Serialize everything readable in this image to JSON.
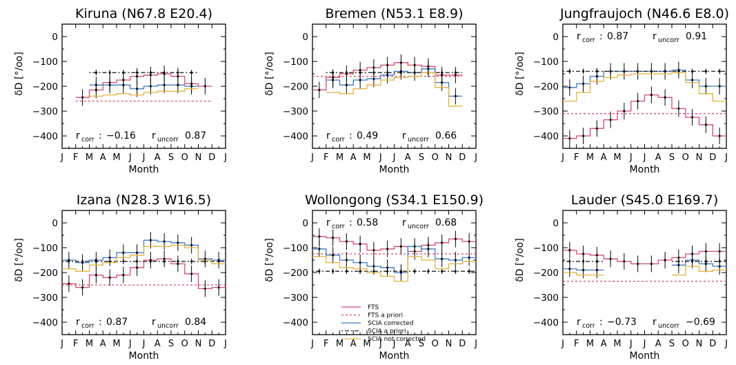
{
  "figure": {
    "month_labels": [
      "J",
      "F",
      "M",
      "A",
      "M",
      "J",
      "J",
      "A",
      "S",
      "O",
      "N",
      "D",
      "J"
    ],
    "series_styles": [
      {
        "key": "fts",
        "color": "#d6486b",
        "dash": ""
      },
      {
        "key": "fts_ap",
        "color": "#d6486b",
        "dash": "3,3"
      },
      {
        "key": "scia",
        "color": "#3a78c2",
        "dash": ""
      },
      {
        "key": "scia_ap",
        "color": "#222222",
        "dash": "2,3,6,3"
      },
      {
        "key": "scia_nc",
        "color": "#e3b13c",
        "dash": ""
      }
    ],
    "legend": [
      {
        "key": "fts",
        "label": "FTS"
      },
      {
        "key": "fts_ap",
        "label": "FTS a priori"
      },
      {
        "key": "scia",
        "label": "SCIA corrected"
      },
      {
        "key": "scia_ap",
        "label": "SCIA a priori"
      },
      {
        "key": "scia_nc",
        "label": "SCIA not corrected"
      }
    ]
  },
  "chart_data": [
    {
      "type": "line",
      "title": "Kiruna (N67.8 E20.4)",
      "xlabel": "Month",
      "ylabel": "δD [°/oo]",
      "xlim": [
        0,
        12
      ],
      "ylim": [
        -450,
        50
      ],
      "yticks": [
        0,
        -100,
        -200,
        -300,
        -400
      ],
      "x": [
        1,
        2,
        3,
        4,
        5,
        6,
        7,
        8,
        9,
        10
      ],
      "corr_text": {
        "rcorr_label": "r",
        "rcorr_sub": "corr",
        "rcorr_colon": ":",
        "rcorr_value": "-0.16",
        "runcorr_label": "r",
        "runcorr_sub": "uncorr",
        "runcorr_value": "0.87"
      },
      "series": [
        {
          "key": "fts",
          "values": [
            -245,
            -215,
            -185,
            -175,
            -160,
            -155,
            -150,
            -160,
            -190,
            -200
          ]
        },
        {
          "key": "fts_ap",
          "values": [
            -260,
            -260,
            -260,
            -260,
            -260,
            -260,
            -260,
            -260,
            -260,
            -260
          ]
        },
        {
          "key": "scia",
          "values": [
            null,
            -195,
            -195,
            -195,
            -210,
            -200,
            -195,
            -195,
            -200,
            null
          ]
        },
        {
          "key": "scia_ap",
          "values": [
            null,
            -145,
            -145,
            -145,
            -145,
            -145,
            -145,
            -145,
            -145,
            null
          ]
        },
        {
          "key": "scia_nc",
          "values": [
            null,
            -240,
            -235,
            -230,
            -235,
            -225,
            -220,
            -220,
            -210,
            null
          ]
        }
      ]
    },
    {
      "type": "line",
      "title": "Bremen (N53.1 E8.9)",
      "xlabel": "Month",
      "ylabel": "δD [°/oo]",
      "xlim": [
        0,
        12
      ],
      "ylim": [
        -450,
        50
      ],
      "yticks": [
        0,
        -100,
        -200,
        -300,
        -400
      ],
      "x": [
        0,
        1,
        2,
        3,
        4,
        5,
        6,
        7,
        8,
        9,
        10,
        11
      ],
      "corr_text": {
        "rcorr_label": "r",
        "rcorr_sub": "corr",
        "rcorr_colon": ":",
        "rcorr_value": "0.49",
        "runcorr_label": "r",
        "runcorr_sub": "uncorr",
        "runcorr_value": "0.66"
      },
      "series": [
        {
          "key": "fts",
          "values": [
            -215,
            -165,
            -150,
            -135,
            -125,
            -115,
            -105,
            -115,
            -120,
            -155,
            -155,
            null
          ]
        },
        {
          "key": "fts_ap",
          "values": [
            -160,
            -160,
            -160,
            -160,
            -160,
            -160,
            -160,
            -160,
            -160,
            -160,
            -160,
            null
          ]
        },
        {
          "key": "scia",
          "values": [
            null,
            -175,
            -195,
            -175,
            -170,
            -155,
            -140,
            -145,
            -130,
            -185,
            -240,
            null
          ]
        },
        {
          "key": "scia_ap",
          "values": [
            null,
            -145,
            -145,
            -145,
            -145,
            -145,
            -145,
            -145,
            -145,
            -145,
            -145,
            null
          ]
        },
        {
          "key": "scia_nc",
          "values": [
            null,
            -225,
            -230,
            -210,
            -195,
            -175,
            -165,
            -160,
            -145,
            -205,
            -280,
            null
          ]
        }
      ]
    },
    {
      "type": "line",
      "title": "Jungfraujoch (N46.6 E8.0)",
      "xlabel": "Month",
      "ylabel": "δD [°/oo]",
      "xlim": [
        0,
        12
      ],
      "ylim": [
        -450,
        50
      ],
      "yticks": [
        0,
        -100,
        -200,
        -300,
        -400
      ],
      "x": [
        0,
        1,
        2,
        3,
        4,
        5,
        6,
        7,
        8,
        9,
        10,
        11
      ],
      "corr_text": {
        "rcorr_label": "r",
        "rcorr_sub": "corr",
        "rcorr_colon": ":",
        "rcorr_value": "0.87",
        "runcorr_label": "r",
        "runcorr_sub": "uncorr",
        "runcorr_value": "0.91"
      },
      "series": [
        {
          "key": "fts",
          "values": [
            -410,
            -400,
            -370,
            -335,
            -300,
            -260,
            -235,
            -245,
            -290,
            -325,
            -355,
            -400
          ]
        },
        {
          "key": "fts_ap",
          "values": [
            -310,
            -310,
            -310,
            -310,
            -310,
            -310,
            -310,
            -310,
            -310,
            -310,
            -310,
            -310
          ]
        },
        {
          "key": "scia",
          "values": [
            -205,
            -190,
            -160,
            -140,
            -140,
            -140,
            -140,
            -140,
            -135,
            -175,
            -200,
            -200
          ]
        },
        {
          "key": "scia_ap",
          "values": [
            -140,
            -140,
            -140,
            -140,
            -140,
            -140,
            -140,
            -140,
            -140,
            -140,
            -140,
            -140
          ]
        },
        {
          "key": "scia_nc",
          "values": [
            -260,
            -225,
            -180,
            -165,
            -155,
            -150,
            -150,
            -150,
            -145,
            -185,
            -230,
            -260
          ]
        }
      ]
    },
    {
      "type": "line",
      "title": "Izana (N28.3 W16.5)",
      "xlabel": "Month",
      "ylabel": "δD [°/oo]",
      "xlim": [
        0,
        12
      ],
      "ylim": [
        -450,
        50
      ],
      "yticks": [
        0,
        -100,
        -200,
        -300,
        -400
      ],
      "x": [
        0,
        1,
        2,
        3,
        4,
        5,
        6,
        7,
        8,
        9,
        10,
        11
      ],
      "corr_text": {
        "rcorr_label": "r",
        "rcorr_sub": "corr",
        "rcorr_colon": ":",
        "rcorr_value": "0.87",
        "runcorr_label": "r",
        "runcorr_sub": "uncorr",
        "runcorr_value": "0.84"
      },
      "series": [
        {
          "key": "fts",
          "values": [
            -245,
            -260,
            -210,
            -220,
            -210,
            -180,
            -150,
            -145,
            -165,
            -205,
            -265,
            -260
          ]
        },
        {
          "key": "fts_ap",
          "values": [
            -250,
            -250,
            -250,
            -250,
            -250,
            -250,
            -250,
            -250,
            -250,
            -250,
            -250,
            -250
          ]
        },
        {
          "key": "scia",
          "values": [
            -150,
            -160,
            -150,
            -140,
            -120,
            -120,
            -70,
            -75,
            -80,
            -90,
            -145,
            -150
          ]
        },
        {
          "key": "scia_ap",
          "values": [
            -155,
            -155,
            -155,
            -155,
            -155,
            -155,
            -155,
            -155,
            -155,
            -155,
            -155,
            -155
          ]
        },
        {
          "key": "scia_nc",
          "values": [
            -185,
            -195,
            -170,
            -160,
            -140,
            -130,
            -95,
            -95,
            -90,
            -100,
            -150,
            -165
          ]
        }
      ]
    },
    {
      "type": "line",
      "title": "Wollongong (S34.1 E150.9)",
      "xlabel": "Month",
      "ylabel": "δD [°/oo]",
      "xlim": [
        0,
        12
      ],
      "ylim": [
        -450,
        50
      ],
      "yticks": [
        0,
        -100,
        -200,
        -300,
        -400
      ],
      "x": [
        0,
        1,
        2,
        3,
        4,
        5,
        6,
        7,
        8,
        9,
        10,
        11
      ],
      "corr_text": {
        "rcorr_label": "r",
        "rcorr_sub": "corr",
        "rcorr_colon": ":",
        "rcorr_value": "0.58",
        "runcorr_label": "r",
        "runcorr_sub": "uncorr",
        "runcorr_value": "0.68"
      },
      "series": [
        {
          "key": "fts",
          "values": [
            -55,
            -60,
            -75,
            -85,
            -110,
            -105,
            -95,
            -115,
            -90,
            -80,
            -65,
            -75
          ]
        },
        {
          "key": "fts_ap",
          "values": [
            -125,
            -125,
            -125,
            -125,
            -125,
            -125,
            -125,
            -125,
            -125,
            -125,
            -125,
            -125
          ]
        },
        {
          "key": "scia",
          "values": [
            -105,
            -130,
            -150,
            -160,
            -175,
            -180,
            -200,
            -95,
            -105,
            -145,
            -150,
            -140
          ]
        },
        {
          "key": "scia_ap",
          "values": [
            -195,
            -195,
            -195,
            -195,
            -195,
            -195,
            -195,
            -195,
            -195,
            -195,
            -195,
            -195
          ]
        },
        {
          "key": "scia_nc",
          "values": [
            -135,
            -160,
            -180,
            -185,
            -200,
            -215,
            -235,
            -135,
            -150,
            -185,
            -165,
            -155
          ]
        }
      ]
    },
    {
      "type": "line",
      "title": "Lauder (S45.0 E169.7)",
      "xlabel": "Month",
      "ylabel": "δD [°/oo]",
      "xlim": [
        0,
        12
      ],
      "ylim": [
        -450,
        50
      ],
      "yticks": [
        0,
        -100,
        -200,
        -300,
        -400
      ],
      "x": [
        0,
        1,
        2,
        3,
        4,
        5,
        6,
        7,
        8,
        9,
        10,
        11
      ],
      "corr_text": {
        "rcorr_label": "r",
        "rcorr_sub": "corr",
        "rcorr_colon": ":",
        "rcorr_value": "-0.73",
        "runcorr_label": "r",
        "runcorr_sub": "uncorr",
        "runcorr_value": "-0.69"
      },
      "series": [
        {
          "key": "fts",
          "values": [
            -110,
            -125,
            -130,
            -145,
            -155,
            -165,
            -165,
            -150,
            -140,
            -125,
            -115,
            -115
          ]
        },
        {
          "key": "fts_ap",
          "values": [
            -235,
            -235,
            -235,
            -235,
            -235,
            -235,
            -235,
            -235,
            -235,
            -235,
            -235,
            -235
          ]
        },
        {
          "key": "scia",
          "values": [
            -185,
            -190,
            -190,
            null,
            null,
            null,
            null,
            null,
            -170,
            -150,
            -165,
            -175
          ]
        },
        {
          "key": "scia_ap",
          "values": [
            -155,
            -155,
            -155,
            null,
            null,
            null,
            null,
            null,
            -155,
            -155,
            -155,
            -155
          ]
        },
        {
          "key": "scia_nc",
          "values": [
            -200,
            -210,
            -210,
            null,
            null,
            null,
            null,
            null,
            -210,
            -175,
            -195,
            -190
          ]
        }
      ]
    }
  ]
}
